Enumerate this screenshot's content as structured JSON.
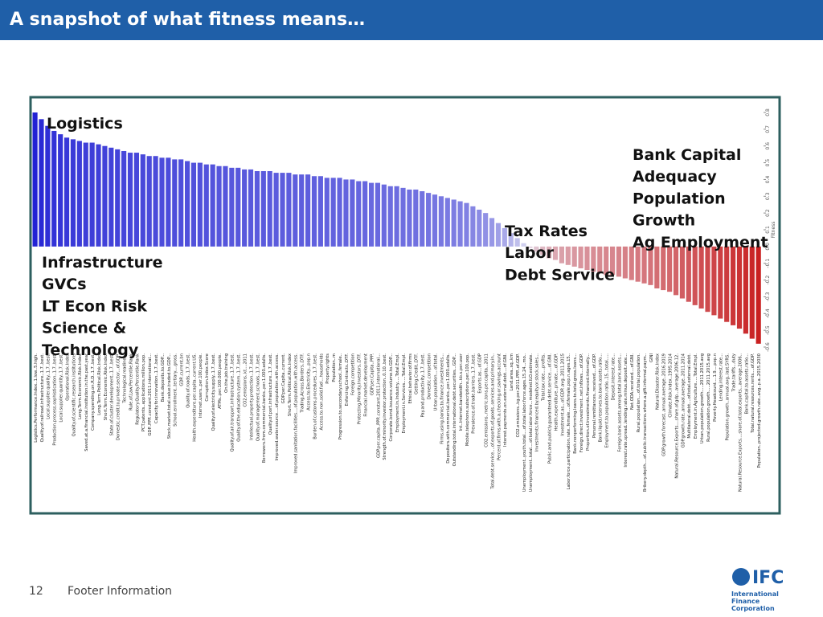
{
  "header": {
    "title": "A snapshot of what fitness means…"
  },
  "chart_data": {
    "type": "bar",
    "y_axis_label": "Fitness",
    "ylim": [
      -0.6,
      0.8
    ],
    "yticks": [
      {
        "value": 0.8,
        "label": "0.8"
      },
      {
        "value": 0.7,
        "label": "0.7"
      },
      {
        "value": 0.6,
        "label": "0.6"
      },
      {
        "value": 0.5,
        "label": "0.5"
      },
      {
        "value": 0.4,
        "label": "0.4"
      },
      {
        "value": 0.3,
        "label": "0.3"
      },
      {
        "value": 0.2,
        "label": "0.2"
      },
      {
        "value": 0.1,
        "label": "0.1"
      },
      {
        "value": 0,
        "label": "0.0"
      },
      {
        "value": -0.1,
        "label": "-0.1"
      },
      {
        "value": -0.2,
        "label": "-0.2"
      },
      {
        "value": -0.3,
        "label": "-0.3"
      },
      {
        "value": -0.4,
        "label": "-0.4"
      },
      {
        "value": -0.5,
        "label": "-0.5"
      },
      {
        "value": -0.6,
        "label": "-0.6"
      }
    ],
    "color_high": "#2222d4",
    "color_zero": "#e4e4f2",
    "color_low": "#c81c1c",
    "categories": [
      "Logistics.Performance.Index..1.low..5.high.",
      "Quality.of.railroad.infrastructure..1.7..best.",
      "Local.supplier.quality..1.7..best.",
      "Production.process.sophistication..1.7..best.",
      "Local.supplier.quantity..1.7..best.",
      "Operational.Risk.Index",
      "Quality.of.scientific.research.institutions",
      "Long.Term.Economic.Risk.Index",
      "Saved.at.a.financial.institution.in.the.past.year",
      "Company.spending.on.R.D..1.7..best.",
      "Long.Term.Political.Risk.Index",
      "Short.Term.Economic.Risk.Index",
      "State.of.cluster.development..1.7..best.",
      "Domestic.credit.to.private.sector...of.GDP.",
      "Technological.readiness",
      "Rule.of.Law.Percentile.Rank",
      "Regulatory.Quality.Percentile.Rank",
      "PCT.patents..applications.million.pop.",
      "GDP..PPP..constant.2011.international...",
      "Capacity.for.innovation..1.7..best.",
      "Bank.deposits.to.GDP...",
      "Stock.market.total.value.traded.to.GDP...",
      "School.enrollment..tertiary....gross.",
      "GDP..current.bn",
      "Quality.of.roads..1.7..best.",
      "Health.expenditure.per.capita..current.US.",
      "Internet.users..per.100.people.",
      "Corruption.Index.Score",
      "Quality.of.electricity.supply..1.7..best.",
      "ATMs..per.100.000.people.",
      "On.the.job.training",
      "Quality.of.air.transport.infrastructure..1.7..best.",
      "Quality.of.the.education.system..1.7..best.",
      "CO2.emissions..kt....2011",
      "Intellectual.property.protection..1.7..best.",
      "Quality.of.management.schools..1.7..best.",
      "Borrowers.from.commercial.banks..per.1.000.adults.",
      "Quality.of.port.infrastructure..1.7..best.",
      "Improved.water.source....of.population.with.access.",
      "GDP.per.Capita..current.",
      "Short.Term.Political.Risk.Index",
      "Improved.sanitation.facilities....of.population.with.access.",
      "Trading.Across.Borders..DTF.",
      "Access.to.Electricity...pop.n",
      "Burden.of.customs.procedures..1.7..best.",
      "Access.to.non.solid.fuel...households",
      "Property.rights",
      "Population..m",
      "Progression.to.secondary.school..female..",
      "Enforcing.Contracts..DTF.",
      "Foreign.competition",
      "Protecting.Minority.Investors..DTF.",
      "Financial.market.development",
      "GDP.per.Capita..PPP.",
      "GDP.per.capita..PPP..constant.2011.international...",
      "Strength.of.minority.investor.protection..0.10..best.",
      "Corporate.bond.issuance.volume.to.GDP...",
      "Employment.in.Industry.....Total.Empl.",
      "Employment.in.Services.....Total.Empl.",
      "Ethical.behavior.of.firms",
      "Getting.Credit..DTF.",
      "Pay.and.productivity..1.7..best.",
      "Domestic.competition",
      "Urban.population....of.total.",
      "Firms.using.banks.to.finance.investments...",
      "Depositors.with.commercial.banks..per.1.000.adults.",
      "Outstanding.total.international.debt.securities...GDP...",
      "Int..Internet.bandwidth..kb.s.per.user",
      "Mobile.telephone.subscriptions.per.100.pop.",
      "Prevalence.of.trade.barriers..1.7..best.",
      "Exports.as...of.GDP",
      "CO2.emissions..metric.tons.per.capita...2011",
      "Total.debt.service....of.exports.of.goods..services.and.primary.in..",
      "Percent.of.firms.with.a.checking.or.savings.account",
      "Interest.payments.on.external.debt....of.GNI.",
      "Land.area..sq..km",
      "CO2.emissions..kg.per.2011.PPP..of.GDP.",
      "Unemployment..youth.total....of.total.labor.force.ages.15.24...mo..",
      "Unemployment..total....of.total.labor.force...modeled.ILO.estimate.",
      "Investments.financed.by.equity.or.stock.sales...",
      "Total.tax.rate....profits.",
      "Public.and.publicly.guaranteed.debt.service....of.GNI.",
      "Health.expenditure..private....of.GDP.",
      "Investment.as...of.GDP..avg..2011.2015",
      "Labor.force.participation.rate..female....of.female.pop.n.ages.15..",
      "Bank.nonperforming.loans.to.total.gross.loans...",
      "Foreign.direct.investment..net.inflows....of.GDP.",
      "Proportion.of.investments.financed.internally...",
      "Personal.remittances..received....of.GDP.",
      "Bank.liquid.reserves.to.bank.assets.ratio...",
      "Employment.to.population.ratio..15...total.....",
      "Deposit.interest.rate...",
      "Foreign.bank.assets.among.total.bank.assets...",
      "Interest.rate.spread..lending.rate.minus.deposit.rate...",
      "Net.ODA.received....of.GNI.",
      "Rural.population....of.total.population.",
      "Bribery.depth....of.public.transactions.where.a.gift.informal.paym..",
      "GINI",
      "Natural.Disaster.Risk.Index",
      "GDP.growth.forecast..annual.average..2016.2019",
      "Climate.Risk.Index..1995.2014",
      "Natural.Resource.Exports....share.of.gdp...average.2006.12.",
      "GDP.growth.rate..annual.average..2011.2014",
      "Multilateral.debt....of.total.external.debt.",
      "Employment.in.Agriculture.....Total.Empl.",
      "Urban.population.growth.....2011.2015.avg",
      "Rural.population.growth.....2011.2015.avg",
      "Poverty.Headcount....1.9....pop.n",
      "Lending.interest.rate...",
      "Population.growth..annual.avg..last.5YRS.",
      "Trade.tariffs...duty",
      "Natural.Resource.Exports....share.of.total.exports...average.2006..",
      "Bank.capital.to.assets.ratio...",
      "Total.natural.resources.rents....of.GDP.",
      "Population..projected.growth.rate..avg..p.a..2015.2030"
    ],
    "values": [
      0.8,
      0.76,
      0.72,
      0.69,
      0.67,
      0.65,
      0.64,
      0.63,
      0.62,
      0.62,
      0.61,
      0.6,
      0.59,
      0.58,
      0.57,
      0.56,
      0.56,
      0.55,
      0.54,
      0.54,
      0.53,
      0.53,
      0.52,
      0.52,
      0.51,
      0.5,
      0.5,
      0.49,
      0.49,
      0.48,
      0.48,
      0.47,
      0.47,
      0.46,
      0.46,
      0.45,
      0.45,
      0.45,
      0.44,
      0.44,
      0.44,
      0.43,
      0.43,
      0.43,
      0.42,
      0.42,
      0.41,
      0.41,
      0.41,
      0.4,
      0.4,
      0.39,
      0.39,
      0.38,
      0.38,
      0.37,
      0.36,
      0.36,
      0.35,
      0.34,
      0.34,
      0.33,
      0.32,
      0.31,
      0.3,
      0.29,
      0.28,
      0.27,
      0.26,
      0.24,
      0.22,
      0.2,
      0.17,
      0.14,
      0.11,
      0.08,
      0.05,
      0.02,
      -0.01,
      -0.03,
      -0.05,
      -0.07,
      -0.08,
      -0.1,
      -0.11,
      -0.12,
      -0.13,
      -0.14,
      -0.15,
      -0.16,
      -0.17,
      -0.17,
      -0.18,
      -0.19,
      -0.2,
      -0.21,
      -0.22,
      -0.23,
      -0.25,
      -0.26,
      -0.27,
      -0.29,
      -0.31,
      -0.33,
      -0.35,
      -0.37,
      -0.39,
      -0.41,
      -0.43,
      -0.45,
      -0.47,
      -0.49,
      -0.52,
      -0.55,
      -0.58
    ],
    "annotations": {
      "top_left": [
        "Logistics"
      ],
      "left": [
        "Infrastructure",
        "GVCs",
        "LT Econ Risk",
        "Science &",
        "Technology"
      ],
      "middle": [
        "Tax Rates",
        "Labor",
        "Debt Service"
      ],
      "right": [
        "Bank Capital",
        "Adequacy",
        "Population",
        "Growth",
        "Ag Employment"
      ]
    }
  },
  "footer": {
    "page_number": "12",
    "text": "Footer Information",
    "logo": [
      "IFC",
      "International",
      "Finance",
      "Corporation"
    ]
  }
}
